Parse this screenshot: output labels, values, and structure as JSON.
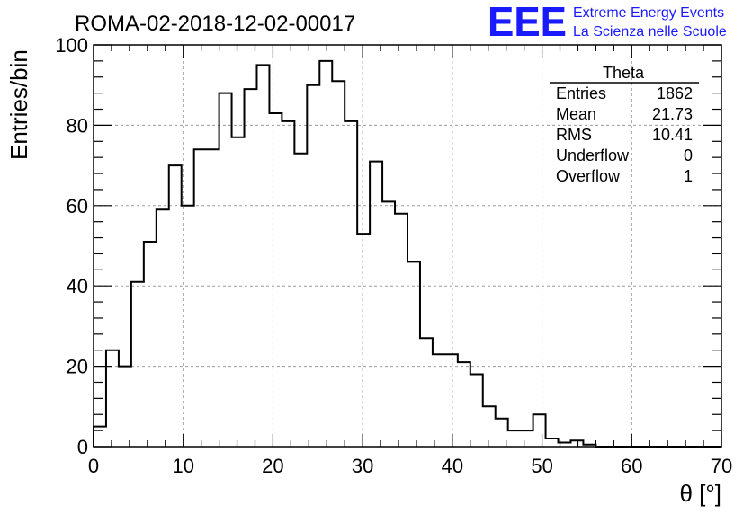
{
  "chart_data": {
    "type": "bar",
    "title": "ROMA-02-2018-12-02-00017",
    "xlabel": "θ [°]",
    "ylabel": "Entries/bin",
    "xlim": [
      0,
      70
    ],
    "ylim": [
      0,
      100
    ],
    "xticks": [
      0,
      10,
      20,
      30,
      40,
      50,
      60,
      70
    ],
    "yticks": [
      0,
      20,
      40,
      60,
      80,
      100
    ],
    "grid": true,
    "bin_width": 1.4,
    "bin_edges_start": 0,
    "values": [
      5,
      24,
      20,
      41,
      51,
      59,
      70,
      60,
      74,
      74,
      88,
      77,
      89,
      95,
      83,
      81,
      73,
      90,
      96,
      91,
      81,
      53,
      71,
      61,
      58,
      46,
      27,
      23,
      23,
      21,
      18,
      10,
      7,
      4,
      4,
      8,
      2,
      1,
      1.5,
      0.5,
      0,
      0,
      0,
      0,
      0,
      0,
      0,
      0,
      0,
      0
    ],
    "stats": {
      "title": "Theta",
      "rows": [
        {
          "label": "Entries",
          "value": "1862"
        },
        {
          "label": "Mean",
          "value": "21.73"
        },
        {
          "label": "RMS",
          "value": "10.41"
        },
        {
          "label": "Underflow",
          "value": "0"
        },
        {
          "label": "Overflow",
          "value": "1"
        }
      ]
    }
  },
  "logo": {
    "mark": "EEE",
    "line1": "Extreme Energy Events",
    "line2": "La Scienza nelle Scuole",
    "color": "#1a1aff"
  }
}
